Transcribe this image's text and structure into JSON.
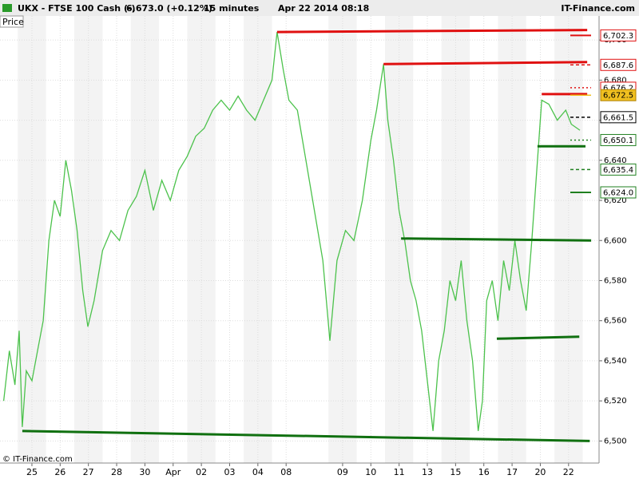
{
  "chart_data": {
    "type": "line",
    "header": {
      "symbol": "UKX - FTSE 100 Cash (-)",
      "quote": "6,673.0 (+0.12%)",
      "interval": "15 minutes",
      "datetime": "Apr 22 2014 08:18",
      "brand": "IT-Finance.com"
    },
    "panel_label": "Price",
    "copyright": "© IT-Finance.com",
    "color": "#4cc24c",
    "x": [
      -1.0,
      -0.8,
      -0.6,
      -0.45,
      -0.34,
      -0.2,
      0.0,
      0.2,
      0.4,
      0.6,
      0.8,
      1.0,
      1.2,
      1.4,
      1.6,
      1.8,
      1.98,
      2.2,
      2.5,
      2.8,
      3.1,
      3.4,
      3.7,
      4.0,
      4.3,
      4.6,
      4.9,
      5.2,
      5.5,
      5.8,
      6.1,
      6.4,
      6.7,
      7.0,
      7.3,
      7.6,
      7.9,
      8.2,
      8.5,
      8.68,
      8.9,
      9.1,
      9.4,
      9.7,
      10.0,
      10.3,
      10.55,
      10.8,
      11.1,
      11.4,
      11.7,
      12.0,
      12.2,
      12.45,
      12.6,
      12.8,
      13.0,
      13.2,
      13.4,
      13.6,
      13.8,
      14.0,
      14.2,
      14.4,
      14.6,
      14.8,
      15.0,
      15.2,
      15.4,
      15.6,
      15.8,
      15.95,
      16.1,
      16.3,
      16.5,
      16.7,
      16.9,
      17.1,
      17.3,
      17.5,
      17.7,
      17.9,
      18.05,
      18.3,
      18.6,
      18.9,
      19.1,
      19.4
    ],
    "values": [
      6520,
      6545,
      6528,
      6555,
      6507,
      6535,
      6530,
      6545,
      6560,
      6600,
      6620,
      6612,
      6640,
      6625,
      6605,
      6575,
      6557,
      6570,
      6595,
      6605,
      6600,
      6615,
      6622,
      6635,
      6615,
      6630,
      6620,
      6635,
      6642,
      6652,
      6656,
      6665,
      6670,
      6665,
      6672,
      6665,
      6660,
      6670,
      6680,
      6704,
      6685,
      6670,
      6665,
      6640,
      6615,
      6590,
      6550,
      6590,
      6605,
      6600,
      6620,
      6650,
      6665,
      6688,
      6660,
      6640,
      6615,
      6600,
      6580,
      6570,
      6555,
      6530,
      6505,
      6540,
      6555,
      6580,
      6570,
      6590,
      6560,
      6540,
      6505,
      6520,
      6570,
      6580,
      6560,
      6590,
      6575,
      6600,
      6580,
      6565,
      6600,
      6640,
      6670,
      6668,
      6660,
      6665,
      6658,
      6655
    ],
    "xlim": [
      -1.13,
      20.08
    ],
    "ylim": [
      6489,
      6712
    ],
    "xticks": [
      {
        "value": 0,
        "label": "25"
      },
      {
        "value": 1,
        "label": "26"
      },
      {
        "value": 2,
        "label": "27"
      },
      {
        "value": 3,
        "label": "28"
      },
      {
        "value": 4,
        "label": "30"
      },
      {
        "value": 5,
        "label": "Apr"
      },
      {
        "value": 6,
        "label": "02"
      },
      {
        "value": 7,
        "label": "03"
      },
      {
        "value": 8,
        "label": "04"
      },
      {
        "value": 9,
        "label": "08"
      },
      {
        "value": 11,
        "label": "09"
      },
      {
        "value": 12,
        "label": "10"
      },
      {
        "value": 13,
        "label": "11"
      },
      {
        "value": 14,
        "label": "13"
      },
      {
        "value": 15,
        "label": "15"
      },
      {
        "value": 16,
        "label": "16"
      },
      {
        "value": 17,
        "label": "17"
      },
      {
        "value": 18,
        "label": "20"
      },
      {
        "value": 19,
        "label": "22"
      }
    ],
    "yticks": [
      {
        "value": 6500,
        "label": "6,500"
      },
      {
        "value": 6520,
        "label": "6,520"
      },
      {
        "value": 6540,
        "label": "6,540"
      },
      {
        "value": 6560,
        "label": "6,560"
      },
      {
        "value": 6580,
        "label": "6,580"
      },
      {
        "value": 6600,
        "label": "6,600"
      },
      {
        "value": 6620,
        "label": "6,620"
      },
      {
        "value": 6640,
        "label": "6,640"
      },
      {
        "value": 6660,
        "label": "6,660"
      },
      {
        "value": 6680,
        "label": "6,680"
      },
      {
        "value": 6700,
        "label": "6,700"
      }
    ],
    "grid": true,
    "trendlines": [
      {
        "x0": 8.68,
        "y0": 6704,
        "x1": 19.66,
        "y1": 6705,
        "color": "#e01010"
      },
      {
        "x0": 12.45,
        "y0": 6688,
        "x1": 19.66,
        "y1": 6689,
        "color": "#e01010"
      },
      {
        "x0": 18.05,
        "y0": 6673,
        "x1": 19.66,
        "y1": 6673,
        "color": "#e01010"
      },
      {
        "x0": 17.9,
        "y0": 6647,
        "x1": 19.6,
        "y1": 6647,
        "color": "#107010"
      },
      {
        "x0": 13.07,
        "y0": 6601,
        "x1": 19.8,
        "y1": 6600,
        "color": "#107010"
      },
      {
        "x0": 16.46,
        "y0": 6551,
        "x1": 19.38,
        "y1": 6552,
        "color": "#107010"
      },
      {
        "x0": -0.34,
        "y0": 6505,
        "x1": 19.75,
        "y1": 6500,
        "color": "#107010"
      }
    ],
    "levels": [
      {
        "value": 6702.3,
        "label": "6,702.3",
        "color": "#e01010",
        "style": "solid"
      },
      {
        "value": 6687.6,
        "label": "6,687.6",
        "color": "#e01010",
        "style": "dashed"
      },
      {
        "value": 6676.2,
        "label": "6,676.2",
        "color": "#e01010",
        "style": "dotted"
      },
      {
        "value": 6672.5,
        "label": "6,672.5",
        "color": "#f0c020",
        "style": "current"
      },
      {
        "value": 6661.5,
        "label": "6,661.5",
        "color": "#000000",
        "style": "dashed"
      },
      {
        "value": 6650.1,
        "label": "6,650.1",
        "color": "#208020",
        "style": "dotted"
      },
      {
        "value": 6635.4,
        "label": "6,635.4",
        "color": "#208020",
        "style": "dashed"
      },
      {
        "value": 6624.0,
        "label": "6,624.0",
        "color": "#208020",
        "style": "solid"
      }
    ]
  }
}
